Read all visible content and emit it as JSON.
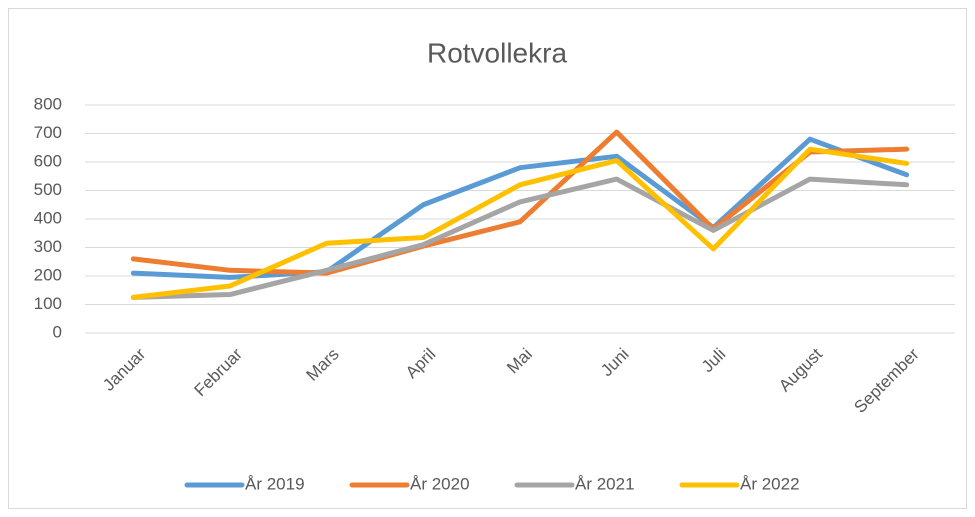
{
  "chart_data": {
    "type": "line",
    "title": "Rotvollekra",
    "categories": [
      "Januar",
      "Februar",
      "Mars",
      "April",
      "Mai",
      "Juni",
      "Juli",
      "August",
      "September"
    ],
    "series": [
      {
        "name": "År 2019",
        "color": "#5b9bd5",
        "values": [
          210,
          195,
          215,
          450,
          580,
          620,
          370,
          680,
          555
        ]
      },
      {
        "name": "År 2020",
        "color": "#ed7d31",
        "values": [
          260,
          220,
          210,
          305,
          390,
          705,
          365,
          635,
          645
        ]
      },
      {
        "name": "År 2021",
        "color": "#a5a5a5",
        "values": [
          125,
          135,
          220,
          310,
          460,
          540,
          360,
          540,
          520
        ]
      },
      {
        "name": "År 2022",
        "color": "#ffc000",
        "values": [
          125,
          165,
          315,
          335,
          520,
          605,
          295,
          645,
          595
        ]
      }
    ],
    "ylim": [
      0,
      800
    ],
    "yticks": [
      0,
      100,
      200,
      300,
      400,
      500,
      600,
      700,
      800
    ],
    "grid": true,
    "legend": "bottom"
  }
}
